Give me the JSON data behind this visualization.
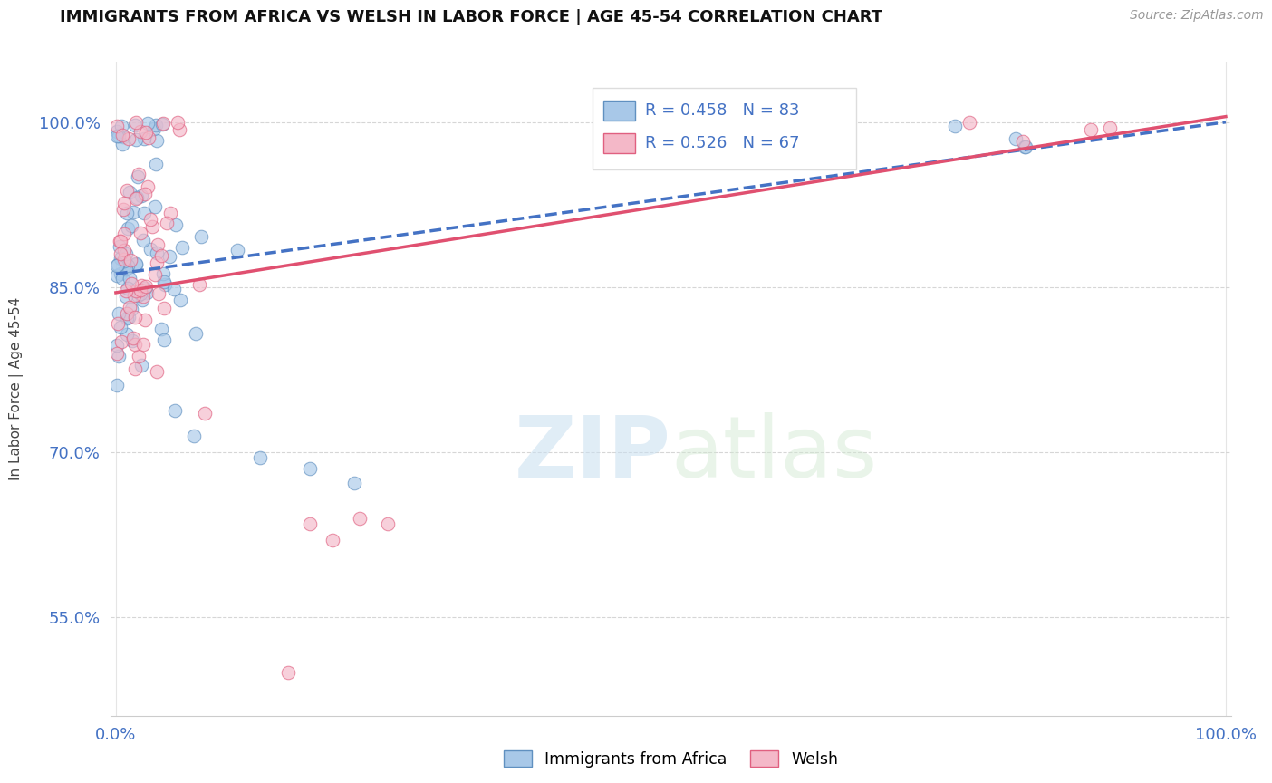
{
  "title": "IMMIGRANTS FROM AFRICA VS WELSH IN LABOR FORCE | AGE 45-54 CORRELATION CHART",
  "source": "Source: ZipAtlas.com",
  "ylabel": "In Labor Force | Age 45-54",
  "r_africa": 0.458,
  "n_africa": 83,
  "r_welsh": 0.526,
  "n_welsh": 67,
  "color_africa_fill": "#a8c8e8",
  "color_welsh_fill": "#f4b8c8",
  "color_africa_edge": "#6090c0",
  "color_welsh_edge": "#e06080",
  "color_africa_line": "#4472c4",
  "color_welsh_line": "#e05070",
  "legend_label_africa": "Immigrants from Africa",
  "legend_label_welsh": "Welsh",
  "watermark_zip": "ZIP",
  "watermark_atlas": "atlas",
  "background_color": "#ffffff",
  "grid_color": "#cccccc",
  "tick_color": "#4472c4",
  "title_color": "#111111",
  "source_color": "#999999"
}
